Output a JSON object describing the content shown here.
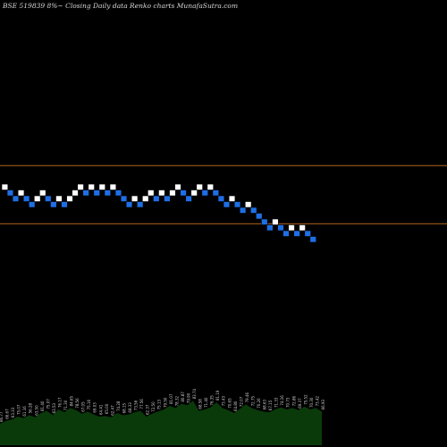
{
  "chart_data": {
    "type": "renko",
    "title": "BSE 519839 8%~  Closing Daily data  Renko  charts MunafaSutra.com",
    "colors": {
      "background": "#000000",
      "up_brick": "#ffffff",
      "down_brick": "#1e6fe6",
      "reference_line": "#b5651d",
      "volume_area": "#0a3a0a"
    },
    "reference_lines": [
      {
        "level": 8.5
      },
      {
        "level": -1.5
      }
    ],
    "brick_size": 1,
    "brick_units": "boxes",
    "bricks": [
      {
        "dir": "up",
        "level": 5
      },
      {
        "dir": "down",
        "level": 4
      },
      {
        "dir": "down",
        "level": 3
      },
      {
        "dir": "up",
        "level": 4
      },
      {
        "dir": "down",
        "level": 3
      },
      {
        "dir": "down",
        "level": 2
      },
      {
        "dir": "up",
        "level": 3
      },
      {
        "dir": "up",
        "level": 4
      },
      {
        "dir": "down",
        "level": 3
      },
      {
        "dir": "down",
        "level": 2
      },
      {
        "dir": "up",
        "level": 3
      },
      {
        "dir": "down",
        "level": 2
      },
      {
        "dir": "up",
        "level": 3
      },
      {
        "dir": "up",
        "level": 4
      },
      {
        "dir": "up",
        "level": 5
      },
      {
        "dir": "down",
        "level": 4
      },
      {
        "dir": "up",
        "level": 5
      },
      {
        "dir": "down",
        "level": 4
      },
      {
        "dir": "up",
        "level": 5
      },
      {
        "dir": "down",
        "level": 4
      },
      {
        "dir": "up",
        "level": 5
      },
      {
        "dir": "down",
        "level": 4
      },
      {
        "dir": "down",
        "level": 3
      },
      {
        "dir": "down",
        "level": 2
      },
      {
        "dir": "up",
        "level": 3
      },
      {
        "dir": "down",
        "level": 2
      },
      {
        "dir": "up",
        "level": 3
      },
      {
        "dir": "up",
        "level": 4
      },
      {
        "dir": "down",
        "level": 3
      },
      {
        "dir": "up",
        "level": 4
      },
      {
        "dir": "down",
        "level": 3
      },
      {
        "dir": "up",
        "level": 4
      },
      {
        "dir": "up",
        "level": 5
      },
      {
        "dir": "down",
        "level": 4
      },
      {
        "dir": "down",
        "level": 3
      },
      {
        "dir": "up",
        "level": 4
      },
      {
        "dir": "up",
        "level": 5
      },
      {
        "dir": "down",
        "level": 4
      },
      {
        "dir": "up",
        "level": 5
      },
      {
        "dir": "down",
        "level": 4
      },
      {
        "dir": "down",
        "level": 3
      },
      {
        "dir": "down",
        "level": 2
      },
      {
        "dir": "up",
        "level": 3
      },
      {
        "dir": "down",
        "level": 2
      },
      {
        "dir": "down",
        "level": 1
      },
      {
        "dir": "up",
        "level": 2
      },
      {
        "dir": "down",
        "level": 1
      },
      {
        "dir": "down",
        "level": 0
      },
      {
        "dir": "down",
        "level": -1
      },
      {
        "dir": "down",
        "level": -2
      },
      {
        "dir": "up",
        "level": -1
      },
      {
        "dir": "down",
        "level": -2
      },
      {
        "dir": "down",
        "level": -3
      },
      {
        "dir": "up",
        "level": -2
      },
      {
        "dir": "down",
        "level": -3
      },
      {
        "dir": "up",
        "level": -2
      },
      {
        "dir": "down",
        "level": -3
      },
      {
        "dir": "down",
        "level": -4
      }
    ],
    "volume_labels": [
      "86.77",
      "66.67",
      "63.33",
      "75.07",
      "61.16",
      "56.28",
      "63.50",
      "81.40",
      "75.07",
      "63.53",
      "76.17",
      "71.30",
      "84.65",
      "78.56",
      "67.05",
      "75.16",
      "69.03",
      "64.41",
      "65.00",
      "62.47",
      "74.28",
      "68.15",
      "68.33",
      "73.56",
      "77.56",
      "62.37",
      "72.50",
      "75.13",
      "79.50",
      "81.07",
      "78.32",
      "80.87",
      "79.90",
      "83.74",
      "68.58",
      "71.40",
      "76.35",
      "81.19",
      "73.43",
      "70.65",
      "64.80",
      "72.07",
      "79.46",
      "72.75",
      "70.26",
      "68.63",
      "67.15",
      "71.33",
      "74.16",
      "70.73",
      "72.86",
      "69.37",
      "75.52",
      "70.30",
      "73.42",
      "66.93"
    ],
    "volume_levels": [
      0.3,
      0.34,
      0.36,
      0.4,
      0.38,
      0.42,
      0.39,
      0.45,
      0.48,
      0.42,
      0.5,
      0.46,
      0.52,
      0.49,
      0.44,
      0.47,
      0.43,
      0.4,
      0.41,
      0.39,
      0.45,
      0.42,
      0.43,
      0.46,
      0.48,
      0.4,
      0.44,
      0.47,
      0.5,
      0.55,
      0.52,
      0.58,
      0.56,
      0.62,
      0.48,
      0.5,
      0.53,
      0.6,
      0.52,
      0.49,
      0.45,
      0.51,
      0.57,
      0.52,
      0.49,
      0.47,
      0.46,
      0.5,
      0.53,
      0.5,
      0.52,
      0.49,
      0.54,
      0.5,
      0.52,
      0.47
    ],
    "grid": false,
    "legend": "none"
  }
}
